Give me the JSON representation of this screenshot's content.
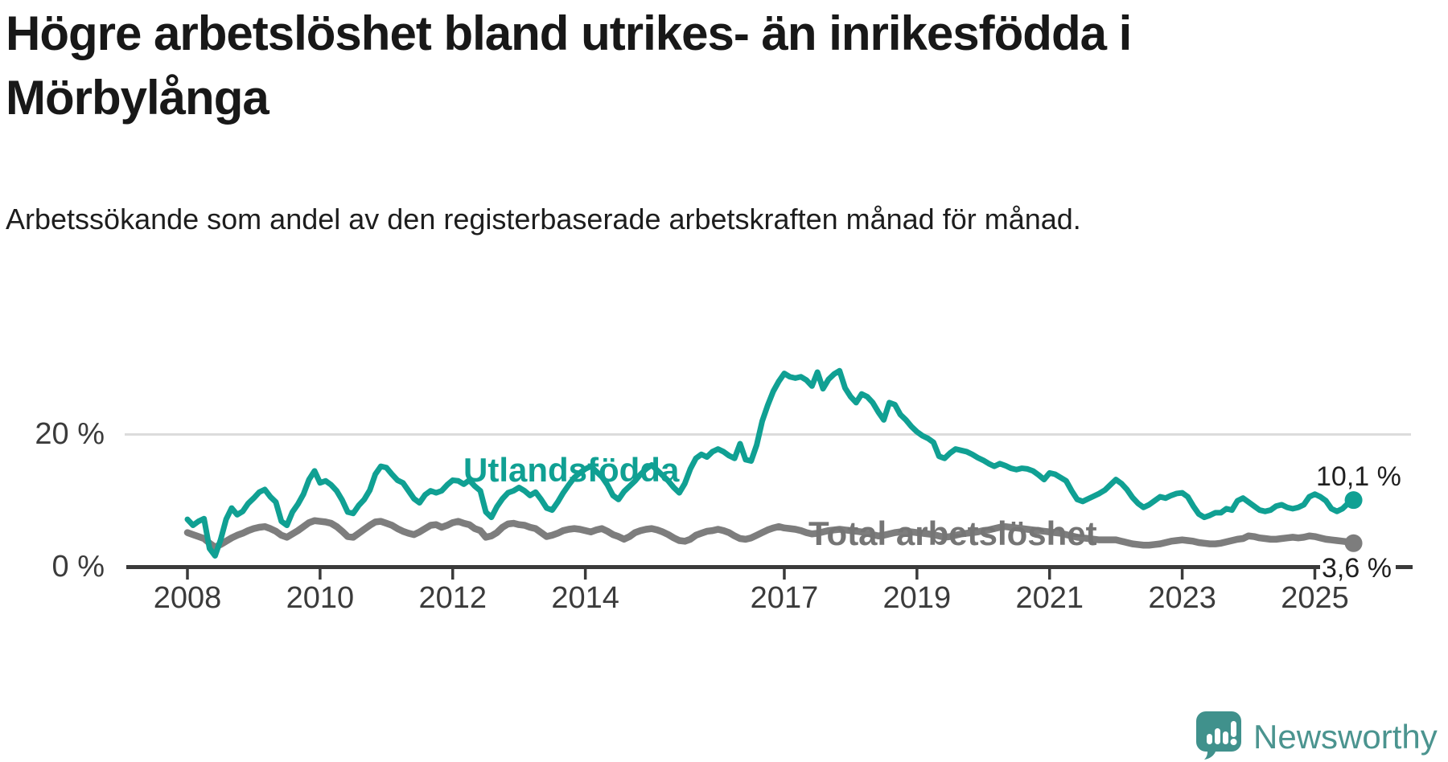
{
  "header": {
    "title": "Högre arbetslöshet bland utrikes- än inrikesfödda i Mörbylånga",
    "subtitle": "Arbetssökande som andel av den registerbaserade arbetskraften månad för månad."
  },
  "branding": {
    "logo_text": "Newsworthy"
  },
  "chart_data": {
    "type": "line",
    "frequency": "monthly",
    "x_start": "2008-01",
    "x_end": "2025-08",
    "ylim": [
      0,
      32
    ],
    "grid": "y-20-only",
    "legend_position": "inline-labels",
    "yticks": [
      {
        "value": 20,
        "label": "20 %"
      },
      {
        "value": 0,
        "label": "0 %"
      }
    ],
    "xtick_years": [
      2008,
      2010,
      2012,
      2014,
      2017,
      2019,
      2021,
      2023,
      2025
    ],
    "series": [
      {
        "name": "Total arbetslöshet",
        "line_label": "Total arbetslöshet",
        "color": "#7d7d7d",
        "label_color": "#757575",
        "line_width": 8.5,
        "end_label": "3,6 %",
        "end_value": 3.6,
        "values": [
          5.2,
          4.9,
          4.6,
          4.3,
          3.6,
          3.0,
          3.4,
          3.9,
          4.4,
          4.8,
          5.1,
          5.5,
          5.8,
          6.0,
          6.1,
          5.8,
          5.4,
          4.8,
          4.5,
          5.0,
          5.5,
          6.1,
          6.7,
          7.0,
          6.9,
          6.8,
          6.6,
          6.1,
          5.4,
          4.6,
          4.5,
          5.1,
          5.7,
          6.3,
          6.8,
          6.9,
          6.6,
          6.3,
          5.8,
          5.4,
          5.1,
          4.9,
          5.3,
          5.8,
          6.3,
          6.4,
          6.0,
          6.3,
          6.7,
          6.9,
          6.6,
          6.4,
          5.8,
          5.5,
          4.5,
          4.7,
          5.2,
          6.0,
          6.5,
          6.6,
          6.4,
          6.3,
          6.0,
          5.8,
          5.2,
          4.6,
          4.8,
          5.1,
          5.5,
          5.7,
          5.8,
          5.7,
          5.5,
          5.3,
          5.6,
          5.8,
          5.4,
          4.9,
          4.6,
          4.2,
          4.6,
          5.2,
          5.5,
          5.7,
          5.8,
          5.6,
          5.3,
          4.9,
          4.4,
          4.0,
          3.9,
          4.2,
          4.8,
          5.1,
          5.4,
          5.5,
          5.7,
          5.5,
          5.2,
          4.7,
          4.3,
          4.2,
          4.4,
          4.8,
          5.2,
          5.6,
          5.9,
          6.1,
          5.9,
          5.8,
          5.7,
          5.5,
          5.2,
          5.0,
          5.1,
          5.3,
          5.5,
          5.6,
          5.7,
          5.6,
          5.5,
          5.4,
          5.3,
          5.1,
          4.9,
          4.7,
          4.8,
          5.0,
          5.2,
          5.3,
          5.4,
          5.3,
          5.2,
          5.1,
          5.0,
          4.9,
          4.7,
          4.5,
          4.6,
          4.8,
          5.0,
          5.1,
          5.2,
          5.3,
          5.5,
          5.6,
          5.8,
          6.0,
          6.1,
          6.0,
          5.9,
          5.8,
          5.7,
          5.6,
          5.5,
          5.4,
          5.3,
          5.2,
          5.1,
          4.9,
          4.7,
          4.5,
          4.4,
          4.3,
          4.2,
          4.1,
          4.1,
          4.1,
          4.1,
          3.9,
          3.7,
          3.5,
          3.4,
          3.3,
          3.3,
          3.4,
          3.5,
          3.7,
          3.9,
          4.0,
          4.1,
          4.0,
          3.9,
          3.7,
          3.6,
          3.5,
          3.5,
          3.6,
          3.8,
          4.0,
          4.2,
          4.3,
          4.7,
          4.6,
          4.4,
          4.3,
          4.2,
          4.2,
          4.3,
          4.4,
          4.5,
          4.4,
          4.5,
          4.7,
          4.6,
          4.4,
          4.2,
          4.1,
          4.0,
          3.9,
          3.8,
          3.6
        ]
      },
      {
        "name": "Utlandsfödda",
        "line_label": "Utlandsfödda",
        "color": "#10A093",
        "label_color": "#10A093",
        "line_width": 7,
        "end_label": "10,1 %",
        "end_value": 10.1,
        "values": [
          7.2,
          6.3,
          6.9,
          7.3,
          2.8,
          1.7,
          4.1,
          7.2,
          8.9,
          7.9,
          8.4,
          9.6,
          10.4,
          11.3,
          11.7,
          10.6,
          9.8,
          6.9,
          6.3,
          8.3,
          9.5,
          11.0,
          13.2,
          14.5,
          12.7,
          13.0,
          12.4,
          11.5,
          10.1,
          8.3,
          8.1,
          9.3,
          10.2,
          11.6,
          14.0,
          15.2,
          15.0,
          14.0,
          13.1,
          12.7,
          11.5,
          10.3,
          9.7,
          10.9,
          11.5,
          11.2,
          11.5,
          12.4,
          13.1,
          13.0,
          12.5,
          13.1,
          12.2,
          11.5,
          8.3,
          7.5,
          9.1,
          10.3,
          11.2,
          11.5,
          12.0,
          11.5,
          10.8,
          11.3,
          10.2,
          8.9,
          8.6,
          9.8,
          11.2,
          12.4,
          13.5,
          14.2,
          14.8,
          15.2,
          14.4,
          13.6,
          12.4,
          10.8,
          10.2,
          11.4,
          12.2,
          13.0,
          14.0,
          14.8,
          15.4,
          14.6,
          13.8,
          13.0,
          12.0,
          11.2,
          12.6,
          14.8,
          16.4,
          17.0,
          16.6,
          17.4,
          17.8,
          17.4,
          16.8,
          16.4,
          18.6,
          16.2,
          16.0,
          18.4,
          22.0,
          24.4,
          26.5,
          28.0,
          29.2,
          28.7,
          28.5,
          28.7,
          28.2,
          27.3,
          29.4,
          26.9,
          28.3,
          29.1,
          29.6,
          27.0,
          25.7,
          24.8,
          26.1,
          25.7,
          24.8,
          23.4,
          22.2,
          24.8,
          24.5,
          23.0,
          22.2,
          21.2,
          20.4,
          19.8,
          19.4,
          18.8,
          16.7,
          16.4,
          17.2,
          17.8,
          17.6,
          17.4,
          17.0,
          16.5,
          16.1,
          15.6,
          15.2,
          15.6,
          15.3,
          14.9,
          14.7,
          14.9,
          14.8,
          14.5,
          13.9,
          13.2,
          14.2,
          14.0,
          13.5,
          13.0,
          11.5,
          10.2,
          9.9,
          10.3,
          10.7,
          11.1,
          11.6,
          12.4,
          13.2,
          12.6,
          11.7,
          10.5,
          9.6,
          9.0,
          9.4,
          10.0,
          10.6,
          10.4,
          10.8,
          11.1,
          11.2,
          10.6,
          9.2,
          8.0,
          7.5,
          7.8,
          8.2,
          8.2,
          8.8,
          8.6,
          10.0,
          10.4,
          9.8,
          9.2,
          8.6,
          8.4,
          8.6,
          9.2,
          9.4,
          9.0,
          8.8,
          9.0,
          9.4,
          10.6,
          11.0,
          10.6,
          10.0,
          8.8,
          8.4,
          8.8,
          9.6,
          10.1
        ]
      }
    ],
    "colors": {
      "grid_line": "#dcdcdc",
      "axis_line": "#3a3a3a",
      "tick_text": "#3b3b3b"
    }
  }
}
